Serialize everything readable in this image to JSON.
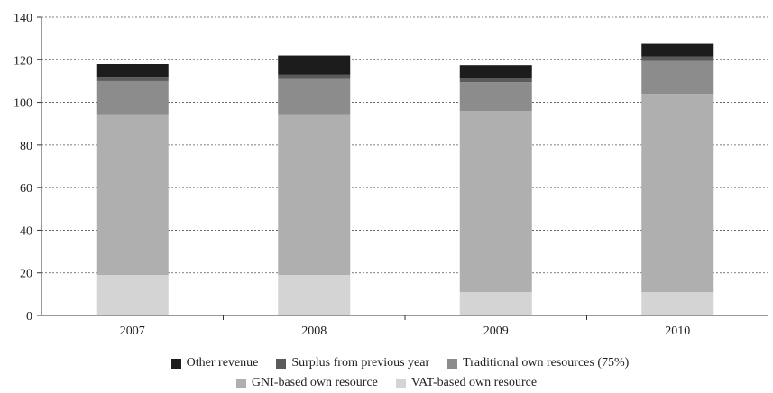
{
  "chart_data": {
    "type": "bar",
    "stacked": true,
    "categories": [
      "2007",
      "2008",
      "2009",
      "2010"
    ],
    "series": [
      {
        "name": "VAT-based own resource",
        "color": "#d4d4d4",
        "values": [
          19,
          19,
          11,
          11
        ]
      },
      {
        "name": "GNI-based own resource",
        "color": "#afafaf",
        "values": [
          75,
          75,
          85,
          93
        ]
      },
      {
        "name": "Traditional own resources (75%)",
        "color": "#8c8c8c",
        "values": [
          16,
          17,
          13.5,
          15.5
        ]
      },
      {
        "name": "Surplus from previous year",
        "color": "#5a5a5a",
        "values": [
          2,
          2,
          2,
          2
        ]
      },
      {
        "name": "Other revenue",
        "color": "#1c1c1c",
        "values": [
          6,
          9,
          6,
          6
        ]
      }
    ],
    "ylim": [
      0,
      140
    ],
    "yticks": [
      0,
      20,
      40,
      60,
      80,
      100,
      120,
      140
    ],
    "grid": "horizontal dashed",
    "legend_position": "bottom"
  },
  "legend": {
    "row1": [
      "Other revenue",
      "Surplus from previous year",
      "Traditional own resources (75%)"
    ],
    "row2": [
      "GNI-based own resource",
      "VAT-based own resource"
    ]
  }
}
